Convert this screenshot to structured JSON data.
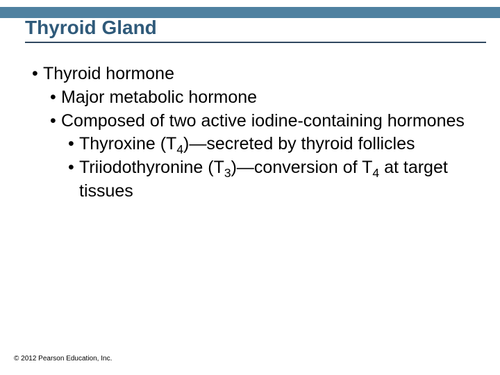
{
  "colors": {
    "title_bar": "#4f81a0",
    "title_text": "#2f5a7a",
    "underline": "#304860",
    "body_text": "#000000",
    "background": "#ffffff"
  },
  "typography": {
    "title_fontsize_pt": 21,
    "body_fontsize_pt": 19,
    "footer_fontsize_pt": 7.5,
    "font_family": "Arial"
  },
  "title": "Thyroid Gland",
  "bullets": {
    "b1": "Thyroid hormone",
    "b1_1": "Major metabolic hormone",
    "b1_2": "Composed of two active iodine-containing hormones",
    "b1_2_1_pre": "Thyroxine (T",
    "b1_2_1_sub": "4",
    "b1_2_1_post": ")—secreted by thyroid follicles",
    "b1_2_2_pre": "Triiodothyronine (T",
    "b1_2_2_sub": "3",
    "b1_2_2_mid": ")—conversion of T",
    "b1_2_2_sub2": "4",
    "b1_2_2_post": " at target tissues"
  },
  "footer": "© 2012 Pearson Education, Inc."
}
